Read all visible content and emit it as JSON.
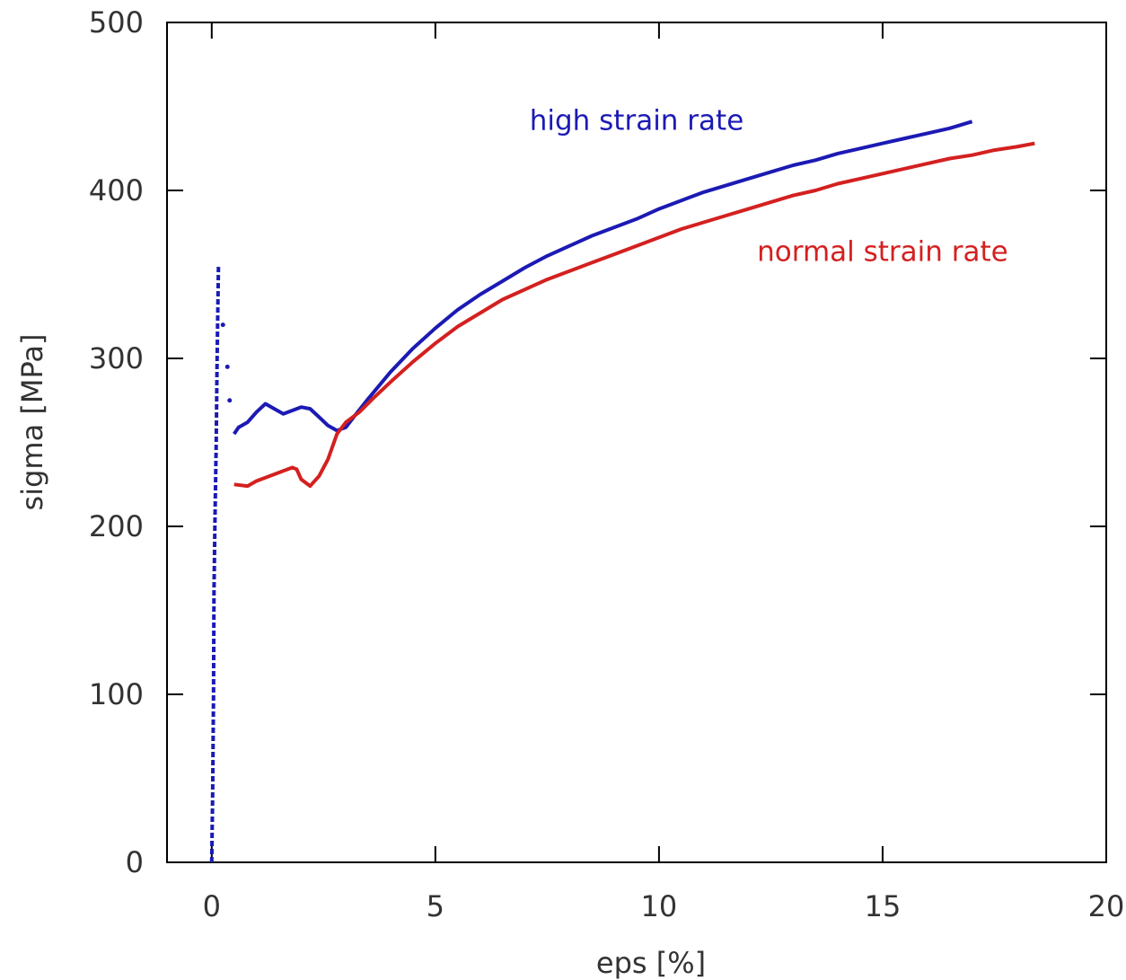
{
  "chart_data": {
    "type": "line",
    "xlabel": "eps [%]",
    "ylabel": "sigma [MPa]",
    "xlim": [
      -1,
      20
    ],
    "ylim": [
      0,
      500
    ],
    "x_ticks": [
      0,
      5,
      10,
      15,
      20
    ],
    "y_ticks": [
      0,
      100,
      200,
      300,
      400,
      500
    ],
    "x_tick_labels": [
      "0",
      "5",
      "10",
      "15",
      "20"
    ],
    "y_tick_labels": [
      "0",
      "100",
      "200",
      "300",
      "400",
      "500"
    ],
    "grid": false,
    "series": [
      {
        "name": "high strain rate",
        "color": "#1c1ab4",
        "points": [
          [
            0.0,
            0
          ],
          [
            0.02,
            40
          ],
          [
            0.04,
            100
          ],
          [
            0.05,
            160
          ],
          [
            0.07,
            200
          ],
          [
            0.1,
            250
          ],
          [
            0.12,
            300
          ],
          [
            0.15,
            355
          ],
          [
            0.5,
            255
          ],
          [
            0.6,
            259
          ],
          [
            0.8,
            262
          ],
          [
            1.0,
            268
          ],
          [
            1.2,
            273
          ],
          [
            1.4,
            270
          ],
          [
            1.6,
            267
          ],
          [
            1.8,
            269
          ],
          [
            2.0,
            271
          ],
          [
            2.2,
            270
          ],
          [
            2.4,
            265
          ],
          [
            2.6,
            260
          ],
          [
            2.8,
            257
          ],
          [
            3.0,
            259
          ],
          [
            3.2,
            266
          ],
          [
            3.5,
            276
          ],
          [
            4.0,
            292
          ],
          [
            4.5,
            306
          ],
          [
            5.0,
            318
          ],
          [
            5.5,
            329
          ],
          [
            6.0,
            338
          ],
          [
            6.5,
            346
          ],
          [
            7.0,
            354
          ],
          [
            7.5,
            361
          ],
          [
            8.0,
            367
          ],
          [
            8.5,
            373
          ],
          [
            9.0,
            378
          ],
          [
            9.5,
            383
          ],
          [
            10.0,
            389
          ],
          [
            10.5,
            394
          ],
          [
            11.0,
            399
          ],
          [
            11.5,
            403
          ],
          [
            12.0,
            407
          ],
          [
            12.5,
            411
          ],
          [
            13.0,
            415
          ],
          [
            13.5,
            418
          ],
          [
            14.0,
            422
          ],
          [
            14.5,
            425
          ],
          [
            15.0,
            428
          ],
          [
            15.5,
            431
          ],
          [
            16.0,
            434
          ],
          [
            16.5,
            437
          ],
          [
            17.0,
            441
          ]
        ]
      },
      {
        "name": "normal strain rate",
        "color": "#d42020",
        "points": [
          [
            0.5,
            225
          ],
          [
            0.8,
            224
          ],
          [
            1.0,
            227
          ],
          [
            1.3,
            230
          ],
          [
            1.6,
            233
          ],
          [
            1.8,
            235
          ],
          [
            1.9,
            234
          ],
          [
            2.0,
            228
          ],
          [
            2.2,
            224
          ],
          [
            2.4,
            230
          ],
          [
            2.6,
            240
          ],
          [
            2.8,
            255
          ],
          [
            3.0,
            262
          ],
          [
            3.3,
            268
          ],
          [
            3.6,
            276
          ],
          [
            4.0,
            286
          ],
          [
            4.5,
            298
          ],
          [
            5.0,
            309
          ],
          [
            5.5,
            319
          ],
          [
            6.0,
            327
          ],
          [
            6.5,
            335
          ],
          [
            7.0,
            341
          ],
          [
            7.5,
            347
          ],
          [
            8.0,
            352
          ],
          [
            8.5,
            357
          ],
          [
            9.0,
            362
          ],
          [
            9.5,
            367
          ],
          [
            10.0,
            372
          ],
          [
            10.5,
            377
          ],
          [
            11.0,
            381
          ],
          [
            11.5,
            385
          ],
          [
            12.0,
            389
          ],
          [
            12.5,
            393
          ],
          [
            13.0,
            397
          ],
          [
            13.5,
            400
          ],
          [
            14.0,
            404
          ],
          [
            14.5,
            407
          ],
          [
            15.0,
            410
          ],
          [
            15.5,
            413
          ],
          [
            16.0,
            416
          ],
          [
            16.5,
            419
          ],
          [
            17.0,
            421
          ],
          [
            17.5,
            424
          ],
          [
            18.0,
            426
          ],
          [
            18.4,
            428
          ]
        ]
      }
    ],
    "annotations": [
      {
        "text": "high strain rate",
        "color": "#1c1ab4",
        "x": 9.5,
        "y": 436
      },
      {
        "text": "normal strain rate",
        "color": "#d42020",
        "x": 15.0,
        "y": 358
      }
    ]
  }
}
